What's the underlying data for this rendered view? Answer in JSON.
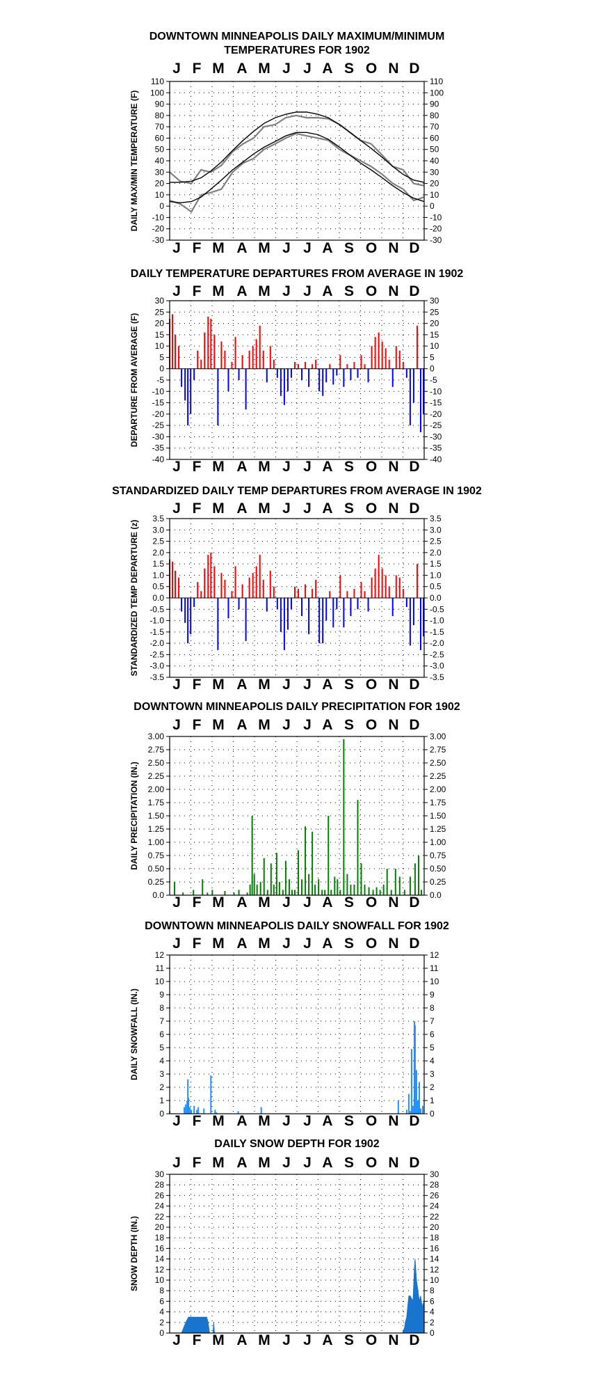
{
  "months": [
    "J",
    "F",
    "M",
    "A",
    "M",
    "J",
    "J",
    "A",
    "S",
    "O",
    "N",
    "D"
  ],
  "panels": [
    {
      "id": "temp",
      "title_lines": [
        "DOWNTOWN MINNEAPOLIS DAILY MAXIMUM/MINIMUM",
        "TEMPERATURES FOR 1902"
      ],
      "ylabel": "DAILY MAX/MIN TEMPERATURE (F)",
      "ylim": [
        -30,
        110
      ],
      "step": 10,
      "ticks": [
        "110",
        "100",
        "90",
        "80",
        "70",
        "60",
        "50",
        "40",
        "30",
        "20",
        "10",
        "0",
        "-10",
        "-20",
        "-30"
      ]
    },
    {
      "id": "dep",
      "title_lines": [
        "DAILY TEMPERATURE DEPARTURES FROM AVERAGE IN 1902"
      ],
      "ylabel": "DEPARTURE FROM AVERAGE (F)",
      "ylim": [
        -40,
        30
      ],
      "step": 5,
      "ticks": [
        "30",
        "25",
        "20",
        "15",
        "10",
        "5",
        "0",
        "-5",
        "-10",
        "-15",
        "-20",
        "-25",
        "-30",
        "-35",
        "-40"
      ]
    },
    {
      "id": "std",
      "title_lines": [
        "STANDARDIZED DAILY TEMP DEPARTURES FROM AVERAGE IN 1902"
      ],
      "ylabel": "STANDARDIZED TEMP DEPARTURE (z)",
      "ylim": [
        -3.5,
        3.5
      ],
      "step": 0.5,
      "ticks": [
        "3.5",
        "3.0",
        "2.5",
        "2.0",
        "1.5",
        "1.0",
        "0.5",
        "0.0",
        "-0.5",
        "-1.0",
        "-1.5",
        "-2.0",
        "-2.5",
        "-3.0",
        "-3.5"
      ]
    },
    {
      "id": "prcp",
      "title_lines": [
        "DOWNTOWN MINNEAPOLIS DAILY PRECIPITATION FOR 1902"
      ],
      "ylabel": "DAILY PRECIPITATION (IN.)",
      "ylim": [
        0,
        3
      ],
      "step": 0.25,
      "ticks": [
        "3.00",
        "2.75",
        "2.50",
        "2.25",
        "2.00",
        "1.75",
        "1.50",
        "1.25",
        "1.00",
        "0.75",
        "0.50",
        "0.25",
        "0.0"
      ]
    },
    {
      "id": "snow",
      "title_lines": [
        "DOWNTOWN MINNEAPOLIS DAILY SNOWFALL FOR 1902"
      ],
      "ylabel": "DAILY SNOWFALL (IN.)",
      "ylim": [
        0,
        12
      ],
      "step": 1,
      "ticks": [
        "12",
        "11",
        "10",
        "9",
        "8",
        "7",
        "6",
        "5",
        "4",
        "3",
        "2",
        "1",
        "0"
      ]
    },
    {
      "id": "depth",
      "title_lines": [
        "DAILY SNOW DEPTH FOR 1902"
      ],
      "ylabel": "SNOW DEPTH (IN.)",
      "ylim": [
        0,
        30
      ],
      "step": 2,
      "ticks": [
        "30",
        "28",
        "26",
        "24",
        "22",
        "20",
        "18",
        "16",
        "14",
        "12",
        "10",
        "8",
        "6",
        "4",
        "2",
        "0"
      ]
    }
  ],
  "colors": {
    "temp_daily": "#808080",
    "temp_normal": "#000000",
    "positive": "#ff0000",
    "negative": "#0000ff",
    "precip": "#008000",
    "snowfall": "#1e90ff",
    "snow_depth": "#1874cd",
    "grid": "#000000"
  },
  "chart_data": [
    {
      "type": "line",
      "title": "DOWNTOWN MINNEAPOLIS DAILY MAXIMUM/MINIMUM TEMPERATURES FOR 1902",
      "ylabel": "DAILY MAX/MIN TEMPERATURE (F)",
      "x": [
        1,
        16,
        32,
        46,
        60,
        75,
        91,
        106,
        121,
        136,
        152,
        167,
        182,
        197,
        213,
        228,
        244,
        259,
        274,
        289,
        305,
        320,
        335,
        350,
        365
      ],
      "series": [
        {
          "values": [
            30,
            22,
            20,
            32,
            30,
            36,
            48,
            55,
            60,
            70,
            72,
            78,
            80,
            78,
            78,
            77,
            72,
            65,
            58,
            55,
            45,
            35,
            32,
            20,
            18
          ]
        },
        {
          "values": [
            5,
            2,
            -5,
            10,
            12,
            15,
            30,
            38,
            42,
            50,
            55,
            60,
            64,
            62,
            60,
            58,
            50,
            45,
            40,
            35,
            28,
            20,
            15,
            5,
            8
          ]
        },
        {
          "values": [
            21,
            21,
            22,
            25,
            31,
            39,
            49,
            58,
            66,
            73,
            78,
            81,
            83,
            83,
            81,
            78,
            72,
            65,
            58,
            51,
            43,
            35,
            28,
            23,
            21
          ]
        },
        {
          "values": [
            4,
            3,
            4,
            8,
            15,
            23,
            32,
            39,
            46,
            52,
            57,
            62,
            65,
            65,
            63,
            59,
            52,
            45,
            38,
            32,
            25,
            18,
            12,
            7,
            4
          ]
        }
      ],
      "ylim": [
        -30,
        110
      ]
    },
    {
      "type": "bar",
      "title": "DAILY TEMPERATURE DEPARTURES FROM AVERAGE IN 1902",
      "ylabel": "DEPARTURE FROM AVERAGE (F)",
      "x": [
        1,
        5,
        9,
        14,
        18,
        23,
        27,
        31,
        36,
        41,
        46,
        51,
        56,
        60,
        65,
        70,
        75,
        80,
        85,
        90,
        95,
        100,
        105,
        110,
        115,
        120,
        125,
        130,
        135,
        140,
        145,
        150,
        155,
        160,
        165,
        170,
        175,
        180,
        185,
        190,
        195,
        200,
        205,
        210,
        215,
        220,
        225,
        230,
        235,
        240,
        245,
        250,
        255,
        260,
        265,
        270,
        275,
        280,
        285,
        290,
        295,
        300,
        305,
        310,
        315,
        320,
        325,
        330,
        335,
        340,
        345,
        350,
        355,
        360,
        364
      ],
      "values": [
        22,
        24,
        15,
        10,
        -8,
        -14,
        -25,
        -20,
        -5,
        8,
        4,
        16,
        23,
        22,
        15,
        -25,
        12,
        8,
        -10,
        3,
        14,
        -5,
        6,
        -18,
        8,
        10,
        13,
        19,
        8,
        -6,
        10,
        4,
        -4,
        -12,
        -16,
        -10,
        -4,
        3,
        2,
        -5,
        3,
        -8,
        2,
        4,
        -10,
        -12,
        -6,
        2,
        -7,
        -3,
        6,
        -8,
        2,
        -5,
        3,
        -4,
        6,
        2,
        -6,
        10,
        14,
        16,
        12,
        9,
        4,
        -8,
        10,
        8,
        3,
        -4,
        -25,
        -15,
        19,
        -28,
        -20
      ],
      "ylim": [
        -40,
        30
      ]
    },
    {
      "type": "bar",
      "title": "STANDARDIZED DAILY TEMP DEPARTURES FROM AVERAGE IN 1902",
      "ylabel": "STANDARDIZED TEMP DEPARTURE (z)",
      "x": [
        1,
        5,
        9,
        14,
        18,
        23,
        27,
        31,
        36,
        41,
        46,
        51,
        56,
        60,
        65,
        70,
        75,
        80,
        85,
        90,
        95,
        100,
        105,
        110,
        115,
        120,
        125,
        130,
        135,
        140,
        145,
        150,
        155,
        160,
        165,
        170,
        175,
        180,
        185,
        190,
        195,
        200,
        205,
        210,
        215,
        220,
        225,
        230,
        235,
        240,
        245,
        250,
        255,
        260,
        265,
        270,
        275,
        280,
        285,
        290,
        295,
        300,
        305,
        310,
        315,
        320,
        325,
        330,
        335,
        340,
        345,
        350,
        355,
        360,
        364
      ],
      "values": [
        1.7,
        1.6,
        1.2,
        0.9,
        -0.6,
        -1.1,
        -2.0,
        -1.6,
        -0.4,
        0.7,
        0.3,
        1.3,
        1.9,
        2.0,
        1.4,
        -2.3,
        1.1,
        0.8,
        -0.9,
        0.3,
        1.4,
        -0.5,
        0.6,
        -1.9,
        0.9,
        1.1,
        1.4,
        1.9,
        0.8,
        -0.6,
        1.2,
        0.5,
        -0.5,
        -1.5,
        -2.3,
        -1.4,
        -0.5,
        0.5,
        0.4,
        -0.8,
        0.6,
        -1.6,
        0.4,
        0.8,
        -2.0,
        -2.0,
        -1.0,
        0.3,
        -1.3,
        -0.5,
        1.0,
        -1.3,
        0.3,
        -0.8,
        0.4,
        -0.5,
        0.7,
        0.3,
        -0.6,
        0.9,
        1.3,
        1.9,
        1.3,
        1.0,
        0.5,
        -0.8,
        1.0,
        0.9,
        0.4,
        -0.4,
        -2.1,
        -1.2,
        1.5,
        -2.3,
        -1.7
      ],
      "ylim": [
        -3.5,
        3.5
      ]
    },
    {
      "type": "bar",
      "title": "DOWNTOWN MINNEAPOLIS DAILY PRECIPITATION FOR 1902",
      "ylabel": "DAILY PRECIPITATION (IN.)",
      "x": [
        8,
        20,
        35,
        48,
        55,
        62,
        80,
        93,
        100,
        112,
        116,
        119,
        122,
        126,
        131,
        136,
        141,
        146,
        150,
        154,
        158,
        163,
        167,
        172,
        176,
        180,
        185,
        190,
        195,
        200,
        205,
        209,
        214,
        219,
        223,
        228,
        232,
        237,
        241,
        245,
        250,
        255,
        260,
        265,
        270,
        275,
        280,
        286,
        292,
        297,
        302,
        307,
        312,
        318,
        324,
        330,
        337,
        345,
        352,
        357,
        361
      ],
      "values": [
        0.25,
        0.05,
        0.1,
        0.3,
        0.05,
        0.1,
        0.08,
        0.05,
        0.1,
        0.05,
        0.2,
        1.5,
        0.4,
        0.2,
        0.25,
        0.7,
        0.1,
        0.6,
        0.2,
        0.8,
        0.25,
        0.1,
        0.65,
        0.3,
        0.1,
        0.1,
        0.85,
        0.3,
        1.3,
        0.4,
        1.2,
        0.2,
        0.3,
        0.1,
        0.1,
        1.5,
        0.1,
        0.35,
        0.3,
        0.1,
        2.95,
        0.4,
        0.2,
        0.2,
        1.8,
        0.6,
        0.2,
        0.15,
        0.1,
        0.15,
        0.1,
        0.2,
        0.5,
        0.1,
        0.5,
        0.35,
        0.1,
        0.35,
        0.6,
        0.75,
        0.1
      ],
      "ylim": [
        0,
        3
      ]
    },
    {
      "type": "bar",
      "title": "DOWNTOWN MINNEAPOLIS DAILY SNOWFALL FOR 1902",
      "ylabel": "DAILY SNOWFALL (IN.)",
      "x": [
        1,
        22,
        24,
        26,
        27,
        28,
        30,
        32,
        36,
        40,
        42,
        50,
        60,
        66,
        68,
        99,
        132,
        328,
        340,
        343,
        345,
        347,
        349,
        351,
        352,
        354,
        356,
        358,
        360,
        363
      ],
      "values": [
        0.2,
        0.5,
        0.7,
        1.0,
        2.6,
        1.2,
        0.5,
        0.3,
        0.6,
        0.3,
        0.5,
        0.4,
        2.9,
        0.3,
        0.1,
        0.2,
        0.5,
        1.0,
        0.3,
        1.5,
        0.2,
        4.9,
        0.6,
        7.0,
        6.7,
        3.3,
        1.0,
        2.4,
        0.4,
        0.6
      ],
      "ylim": [
        0,
        12
      ]
    },
    {
      "type": "area",
      "title": "DAILY SNOW DEPTH FOR 1902",
      "ylabel": "SNOW DEPTH (IN.)",
      "x": [
        1,
        3,
        6,
        10,
        15,
        18,
        21,
        24,
        28,
        32,
        36,
        40,
        45,
        50,
        54,
        56,
        58,
        60,
        63,
        64,
        65,
        68,
        70,
        330,
        334,
        337,
        338,
        340,
        343,
        345,
        349,
        350,
        351,
        352,
        354,
        356,
        358,
        360,
        362,
        365
      ],
      "values": [
        0,
        0,
        0,
        0,
        0,
        0,
        1,
        2,
        3,
        3,
        3,
        3,
        3,
        3,
        3,
        2,
        0,
        0,
        0,
        2,
        0,
        0,
        0,
        0,
        0,
        1,
        2,
        3,
        7,
        7,
        6,
        9,
        12,
        14,
        10,
        8,
        6,
        7,
        5,
        6
      ],
      "ylim": [
        0,
        30
      ]
    }
  ]
}
